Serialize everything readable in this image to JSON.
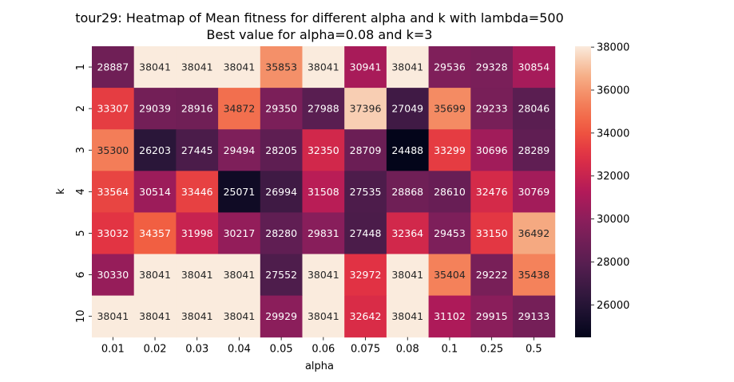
{
  "chart_data": {
    "type": "heatmap",
    "title": "tour29: Heatmap of Mean fitness for different alpha and k with lambda=500",
    "subtitle": "Best value for alpha=0.08 and k=3",
    "xlabel": "alpha",
    "ylabel": "k",
    "x_categories": [
      "0.01",
      "0.02",
      "0.03",
      "0.04",
      "0.05",
      "0.06",
      "0.075",
      "0.08",
      "0.1",
      "0.25",
      "0.5"
    ],
    "y_categories": [
      "1",
      "2",
      "3",
      "4",
      "5",
      "6",
      "10"
    ],
    "values": [
      [
        28887,
        38041,
        38041,
        38041,
        35853,
        38041,
        30941,
        38041,
        29536,
        29328,
        30854
      ],
      [
        33307,
        29039,
        28916,
        34872,
        29350,
        27988,
        37396,
        27049,
        35699,
        29233,
        28046
      ],
      [
        35300,
        26203,
        27445,
        29494,
        28205,
        32350,
        28709,
        24488,
        33299,
        30696,
        28289
      ],
      [
        33564,
        30514,
        33446,
        25071,
        26994,
        31508,
        27535,
        28868,
        28610,
        32476,
        30769
      ],
      [
        33032,
        34357,
        31998,
        30217,
        28280,
        29831,
        27448,
        32364,
        29453,
        33150,
        36492
      ],
      [
        30330,
        38041,
        38041,
        38041,
        27552,
        38041,
        32972,
        38041,
        35404,
        29222,
        35438
      ],
      [
        38041,
        38041,
        38041,
        38041,
        29929,
        38041,
        32642,
        38041,
        31102,
        29915,
        29133
      ]
    ],
    "colorbar": {
      "vmin": 24488,
      "vmax": 38041,
      "ticks": [
        26000,
        28000,
        30000,
        32000,
        34000,
        36000,
        38000
      ],
      "colormap": "rocket"
    }
  }
}
